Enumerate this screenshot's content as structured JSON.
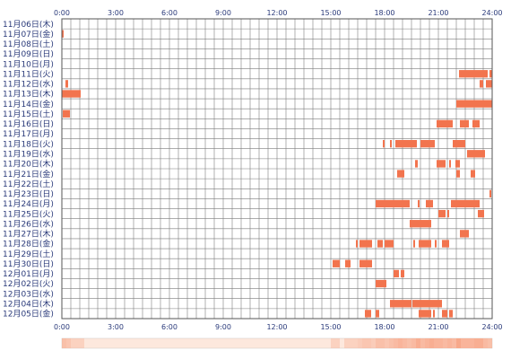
{
  "chart_data": {
    "type": "timeline",
    "x_unit": "hour",
    "xlim": [
      0,
      24
    ],
    "x_tick_labels": [
      "0:00",
      "3:00",
      "6:00",
      "9:00",
      "12:00",
      "15:00",
      "18:00",
      "21:00",
      "24:00"
    ],
    "x_tick_values": [
      0,
      3,
      6,
      9,
      12,
      15,
      18,
      21,
      24
    ],
    "grid": true,
    "colors": {
      "activity": "#f2744e",
      "activity_light": "#f9b49a",
      "grid": "#7c7c7c",
      "frame": "#555555",
      "label": "#2a3a7a",
      "density_fill": "#fde8dd",
      "density_strong": "#f7a88a"
    },
    "rows": [
      {
        "label": "11月06日(木)",
        "segments": []
      },
      {
        "label": "11月07日(金)",
        "segments": [
          [
            0.0,
            0.1
          ]
        ]
      },
      {
        "label": "11月08日(土)",
        "segments": []
      },
      {
        "label": "11月09日(日)",
        "segments": []
      },
      {
        "label": "11月10日(月)",
        "segments": []
      },
      {
        "label": "11月11日(火)",
        "segments": [
          [
            22.15,
            23.75
          ],
          [
            23.85,
            24.0
          ]
        ]
      },
      {
        "label": "11月12日(水)",
        "segments": [
          [
            0.2,
            0.35
          ],
          [
            23.3,
            23.5
          ],
          [
            23.65,
            24.0
          ]
        ]
      },
      {
        "label": "11月13日(木)",
        "segments": [
          [
            0.0,
            1.05
          ]
        ]
      },
      {
        "label": "11月14日(金)",
        "segments": [
          [
            22.0,
            24.0
          ]
        ]
      },
      {
        "label": "11月15日(土)",
        "segments": [
          [
            0.05,
            0.45
          ]
        ]
      },
      {
        "label": "11月16日(日)",
        "segments": [
          [
            20.9,
            21.8
          ],
          [
            22.2,
            22.7
          ],
          [
            22.9,
            23.3
          ]
        ]
      },
      {
        "label": "11月17日(月)",
        "segments": []
      },
      {
        "label": "11月18日(火)",
        "segments": [
          [
            17.9,
            18.0
          ],
          [
            18.3,
            18.4
          ],
          [
            18.6,
            19.8
          ],
          [
            20.0,
            20.8
          ],
          [
            21.8,
            22.5
          ]
        ]
      },
      {
        "label": "11月19日(水)",
        "segments": [
          [
            22.6,
            23.6
          ]
        ]
      },
      {
        "label": "11月20日(木)",
        "segments": [
          [
            19.7,
            19.85
          ],
          [
            20.9,
            21.4
          ],
          [
            21.6,
            21.7
          ],
          [
            21.95,
            22.2
          ]
        ]
      },
      {
        "label": "11月21日(金)",
        "segments": [
          [
            18.7,
            19.1
          ],
          [
            22.0,
            22.2
          ],
          [
            22.8,
            23.05
          ]
        ]
      },
      {
        "label": "11月22日(土)",
        "segments": []
      },
      {
        "label": "11月23日(日)",
        "segments": [
          [
            23.85,
            23.95
          ]
        ]
      },
      {
        "label": "11月24日(月)",
        "segments": [
          [
            17.5,
            19.4
          ],
          [
            19.85,
            19.95
          ],
          [
            20.3,
            20.7
          ],
          [
            21.7,
            23.3
          ]
        ]
      },
      {
        "label": "11月25日(火)",
        "segments": [
          [
            21.0,
            21.4
          ],
          [
            21.5,
            21.6
          ],
          [
            23.2,
            23.55
          ]
        ]
      },
      {
        "label": "11月26日(水)",
        "segments": [
          [
            19.4,
            20.6
          ]
        ]
      },
      {
        "label": "11月27日(木)",
        "segments": [
          [
            22.2,
            22.7
          ]
        ]
      },
      {
        "label": "11月28日(金)",
        "segments": [
          [
            16.4,
            16.5
          ],
          [
            16.6,
            17.3
          ],
          [
            17.6,
            17.9
          ],
          [
            18.0,
            18.5
          ],
          [
            19.6,
            19.7
          ],
          [
            19.9,
            20.6
          ],
          [
            20.8,
            20.9
          ],
          [
            21.2,
            21.6
          ]
        ]
      },
      {
        "label": "11月29日(土)",
        "segments": []
      },
      {
        "label": "11月30日(日)",
        "segments": [
          [
            15.1,
            15.5
          ],
          [
            15.8,
            16.1
          ],
          [
            16.6,
            17.3
          ]
        ]
      },
      {
        "label": "12月01日(月)",
        "segments": [
          [
            18.5,
            18.8
          ],
          [
            18.9,
            19.1
          ]
        ]
      },
      {
        "label": "12月02日(火)",
        "segments": [
          [
            17.5,
            18.1
          ]
        ]
      },
      {
        "label": "12月03日(水)",
        "segments": []
      },
      {
        "label": "12月04日(木)",
        "segments": [
          [
            18.3,
            19.5
          ],
          [
            19.55,
            21.2
          ]
        ]
      },
      {
        "label": "12月05日(金)",
        "segments": [
          [
            16.9,
            17.25
          ],
          [
            17.5,
            17.7
          ],
          [
            19.9,
            20.6
          ],
          [
            20.7,
            20.8
          ],
          [
            21.2,
            21.5
          ],
          [
            21.6,
            21.8
          ]
        ]
      }
    ]
  }
}
